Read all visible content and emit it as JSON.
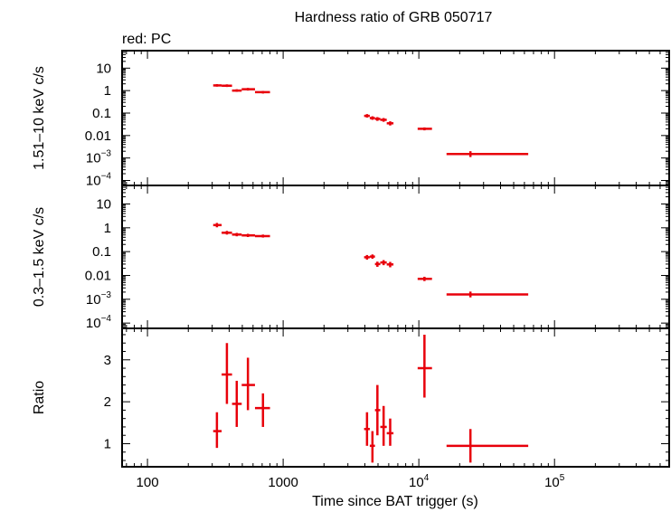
{
  "chart_data": {
    "title": "Hardness ratio of GRB 050717",
    "subtitle": "red: PC",
    "xlabel": "Time since BAT trigger (s)",
    "xscale": "log",
    "xlim": [
      65,
      700000
    ],
    "x_ticks": [
      {
        "value": 100,
        "label": "100"
      },
      {
        "value": 1000,
        "label": "1000"
      },
      {
        "value": 10000,
        "label": "10",
        "exp": "4"
      },
      {
        "value": 100000,
        "label": "10",
        "exp": "5"
      }
    ],
    "series_color": "#e8000b",
    "panels": [
      {
        "id": "hard",
        "type": "scatter",
        "ylabel": "1.51–10 keV c/s",
        "yscale": "log",
        "ylim": [
          6e-05,
          60
        ],
        "y_ticks": [
          {
            "value": 10,
            "label": "10"
          },
          {
            "value": 1,
            "label": "1"
          },
          {
            "value": 0.1,
            "label": "0.1"
          },
          {
            "value": 0.01,
            "label": "0.01"
          },
          {
            "value": 0.001,
            "label": "10",
            "exp": "−3"
          },
          {
            "value": 0.0001,
            "label": "10",
            "exp": "−4"
          }
        ],
        "points": [
          {
            "x": 325,
            "xlo": 305,
            "xhi": 352,
            "y": 1.7,
            "ylo": 1.5,
            "yhi": 1.95
          },
          {
            "x": 385,
            "xlo": 352,
            "xhi": 420,
            "y": 1.65,
            "ylo": 1.45,
            "yhi": 1.9
          },
          {
            "x": 455,
            "xlo": 420,
            "xhi": 495,
            "y": 1.0,
            "ylo": 0.88,
            "yhi": 1.15
          },
          {
            "x": 550,
            "xlo": 495,
            "xhi": 620,
            "y": 1.15,
            "ylo": 1.0,
            "yhi": 1.32
          },
          {
            "x": 710,
            "xlo": 620,
            "xhi": 800,
            "y": 0.85,
            "ylo": 0.74,
            "yhi": 0.97
          },
          {
            "x": 4150,
            "xlo": 3950,
            "xhi": 4350,
            "y": 0.075,
            "ylo": 0.063,
            "yhi": 0.09
          },
          {
            "x": 4550,
            "xlo": 4350,
            "xhi": 4750,
            "y": 0.06,
            "ylo": 0.05,
            "yhi": 0.072
          },
          {
            "x": 4950,
            "xlo": 4750,
            "xhi": 5200,
            "y": 0.055,
            "ylo": 0.045,
            "yhi": 0.066
          },
          {
            "x": 5500,
            "xlo": 5200,
            "xhi": 5800,
            "y": 0.05,
            "ylo": 0.041,
            "yhi": 0.06
          },
          {
            "x": 6150,
            "xlo": 5800,
            "xhi": 6500,
            "y": 0.035,
            "ylo": 0.028,
            "yhi": 0.043
          },
          {
            "x": 11000,
            "xlo": 9800,
            "xhi": 12500,
            "y": 0.02,
            "ylo": 0.017,
            "yhi": 0.023
          },
          {
            "x": 24000,
            "xlo": 16000,
            "xhi": 64000,
            "y": 0.0015,
            "ylo": 0.0011,
            "yhi": 0.002
          }
        ]
      },
      {
        "id": "soft",
        "type": "scatter",
        "ylabel": "0.3–1.5 keV c/s",
        "yscale": "log",
        "ylim": [
          6e-05,
          60
        ],
        "y_ticks": [
          {
            "value": 10,
            "label": "10"
          },
          {
            "value": 1,
            "label": "1"
          },
          {
            "value": 0.1,
            "label": "0.1"
          },
          {
            "value": 0.01,
            "label": "0.01"
          },
          {
            "value": 0.001,
            "label": "10",
            "exp": "−3"
          },
          {
            "value": 0.0001,
            "label": "10",
            "exp": "−4"
          }
        ],
        "points": [
          {
            "x": 325,
            "xlo": 305,
            "xhi": 352,
            "y": 1.3,
            "ylo": 1.05,
            "yhi": 1.6
          },
          {
            "x": 385,
            "xlo": 352,
            "xhi": 420,
            "y": 0.62,
            "ylo": 0.52,
            "yhi": 0.74
          },
          {
            "x": 455,
            "xlo": 420,
            "xhi": 495,
            "y": 0.52,
            "ylo": 0.44,
            "yhi": 0.61
          },
          {
            "x": 550,
            "xlo": 495,
            "xhi": 620,
            "y": 0.48,
            "ylo": 0.41,
            "yhi": 0.56
          },
          {
            "x": 710,
            "xlo": 620,
            "xhi": 800,
            "y": 0.45,
            "ylo": 0.39,
            "yhi": 0.52
          },
          {
            "x": 4150,
            "xlo": 3950,
            "xhi": 4350,
            "y": 0.058,
            "ylo": 0.046,
            "yhi": 0.072
          },
          {
            "x": 4550,
            "xlo": 4350,
            "xhi": 4750,
            "y": 0.062,
            "ylo": 0.05,
            "yhi": 0.076
          },
          {
            "x": 4950,
            "xlo": 4750,
            "xhi": 5200,
            "y": 0.03,
            "ylo": 0.023,
            "yhi": 0.038
          },
          {
            "x": 5500,
            "xlo": 5200,
            "xhi": 5800,
            "y": 0.035,
            "ylo": 0.027,
            "yhi": 0.044
          },
          {
            "x": 6150,
            "xlo": 5800,
            "xhi": 6500,
            "y": 0.029,
            "ylo": 0.022,
            "yhi": 0.037
          },
          {
            "x": 11000,
            "xlo": 9800,
            "xhi": 12500,
            "y": 0.0072,
            "ylo": 0.0058,
            "yhi": 0.0088
          },
          {
            "x": 24000,
            "xlo": 16000,
            "xhi": 64000,
            "y": 0.0016,
            "ylo": 0.0012,
            "yhi": 0.0021
          }
        ]
      },
      {
        "id": "ratio",
        "type": "scatter",
        "ylabel": "Ratio",
        "yscale": "linear",
        "ylim": [
          0.45,
          3.75
        ],
        "y_ticks": [
          {
            "value": 1,
            "label": "1"
          },
          {
            "value": 2,
            "label": "2"
          },
          {
            "value": 3,
            "label": "3"
          }
        ],
        "points": [
          {
            "x": 325,
            "xlo": 305,
            "xhi": 352,
            "y": 1.3,
            "ylo": 0.9,
            "yhi": 1.75
          },
          {
            "x": 385,
            "xlo": 352,
            "xhi": 420,
            "y": 2.65,
            "ylo": 1.95,
            "yhi": 3.4
          },
          {
            "x": 455,
            "xlo": 420,
            "xhi": 495,
            "y": 1.95,
            "ylo": 1.4,
            "yhi": 2.5
          },
          {
            "x": 550,
            "xlo": 495,
            "xhi": 620,
            "y": 2.4,
            "ylo": 1.8,
            "yhi": 3.05
          },
          {
            "x": 710,
            "xlo": 620,
            "xhi": 800,
            "y": 1.85,
            "ylo": 1.4,
            "yhi": 2.2
          },
          {
            "x": 4150,
            "xlo": 3950,
            "xhi": 4350,
            "y": 1.35,
            "ylo": 0.95,
            "yhi": 1.75
          },
          {
            "x": 4550,
            "xlo": 4350,
            "xhi": 4750,
            "y": 0.95,
            "ylo": 0.55,
            "yhi": 1.3
          },
          {
            "x": 4950,
            "xlo": 4750,
            "xhi": 5200,
            "y": 1.8,
            "ylo": 1.2,
            "yhi": 2.4
          },
          {
            "x": 5500,
            "xlo": 5200,
            "xhi": 5800,
            "y": 1.4,
            "ylo": 0.95,
            "yhi": 1.9
          },
          {
            "x": 6150,
            "xlo": 5800,
            "xhi": 6500,
            "y": 1.25,
            "ylo": 0.95,
            "yhi": 1.6
          },
          {
            "x": 11000,
            "xlo": 9800,
            "xhi": 12500,
            "y": 2.8,
            "ylo": 2.1,
            "yhi": 3.6
          },
          {
            "x": 24000,
            "xlo": 16000,
            "xhi": 64000,
            "y": 0.95,
            "ylo": 0.55,
            "yhi": 1.35
          }
        ]
      }
    ]
  }
}
